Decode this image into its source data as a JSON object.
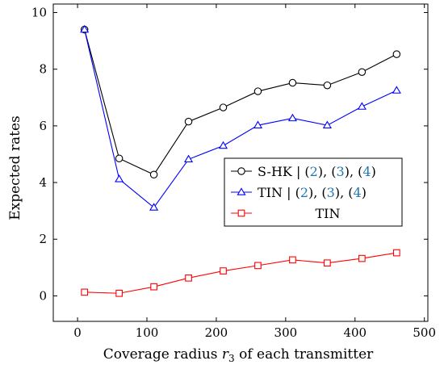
{
  "chart_data": {
    "type": "line",
    "xlabel": "Coverage radius r3 of each transmitter",
    "xlabel_parts": {
      "before": "Coverage radius ",
      "var": "r",
      "sub": "3",
      "after": " of each transmitter"
    },
    "ylabel": "Expected rates",
    "xlim": [
      -35,
      505
    ],
    "ylim": [
      -0.9,
      10.3
    ],
    "xticks": [
      0,
      100,
      200,
      300,
      400,
      500
    ],
    "yticks": [
      0,
      2,
      4,
      6,
      8,
      10
    ],
    "grid": false,
    "legend_position": "center-right",
    "x": [
      10,
      60,
      110,
      160,
      210,
      260,
      310,
      360,
      410,
      460
    ],
    "series": [
      {
        "name": "S-HK | (2), (3), (4)",
        "legend_parts": {
          "main": "S-HK",
          "refs": [
            "2",
            "3",
            "4"
          ]
        },
        "color": "#000000",
        "marker": "circle",
        "values": [
          9.4,
          4.85,
          4.28,
          6.15,
          6.65,
          7.22,
          7.52,
          7.43,
          7.9,
          8.53
        ]
      },
      {
        "name": "TIN | (2), (3), (4)",
        "legend_parts": {
          "main": "TIN",
          "refs": [
            "2",
            "3",
            "4"
          ]
        },
        "color": "#0000ff",
        "marker": "triangle",
        "values": [
          9.4,
          4.12,
          3.12,
          4.82,
          5.3,
          6.02,
          6.27,
          6.02,
          6.68,
          7.25
        ]
      },
      {
        "name": "TIN",
        "legend_parts": {
          "main": "TIN",
          "refs": []
        },
        "color": "#ff0000",
        "marker": "square",
        "values": [
          0.13,
          0.09,
          0.32,
          0.63,
          0.88,
          1.07,
          1.27,
          1.16,
          1.32,
          1.52
        ]
      }
    ]
  }
}
